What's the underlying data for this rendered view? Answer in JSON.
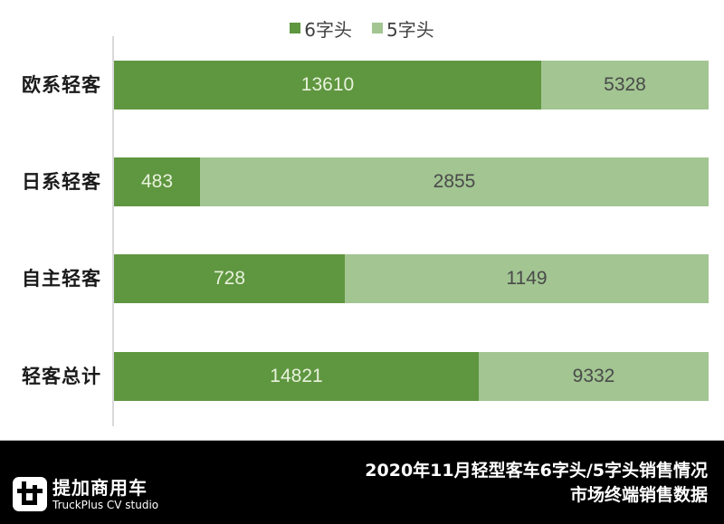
{
  "chart_data": {
    "type": "bar",
    "orientation": "horizontal",
    "stacked": true,
    "percent_stacked": true,
    "title": "2020年11月轻型客车6字头/5字头销售情况",
    "subtitle": "市场终端销售数据",
    "categories": [
      "欧系轻客",
      "日系轻客",
      "自主轻客",
      "轻客总计"
    ],
    "series": [
      {
        "name": "6字头",
        "color": "#5f9640",
        "values": [
          13610,
          483,
          728,
          14821
        ]
      },
      {
        "name": "5字头",
        "color": "#a2c592",
        "values": [
          5328,
          2855,
          1149,
          9332
        ]
      }
    ],
    "legend_position": "top",
    "grid": false,
    "data_labels": true
  },
  "legend": [
    {
      "label": "6字头",
      "color": "#5f9640"
    },
    {
      "label": "5字头",
      "color": "#a2c592"
    }
  ],
  "rows": [
    {
      "label": "欧系轻客",
      "v6": "13610",
      "v5": "5328"
    },
    {
      "label": "日系轻客",
      "v6": "483",
      "v5": "2855"
    },
    {
      "label": "自主轻客",
      "v6": "728",
      "v5": "1149"
    },
    {
      "label": "轻客总计",
      "v6": "14821",
      "v5": "9332"
    }
  ],
  "footer": {
    "logo_cn": "提加商用车",
    "logo_en": "TruckPlus CV studio",
    "title_line1": "2020年11月轻型客车6字头/5字头销售情况",
    "title_line2": "市场终端销售数据"
  }
}
